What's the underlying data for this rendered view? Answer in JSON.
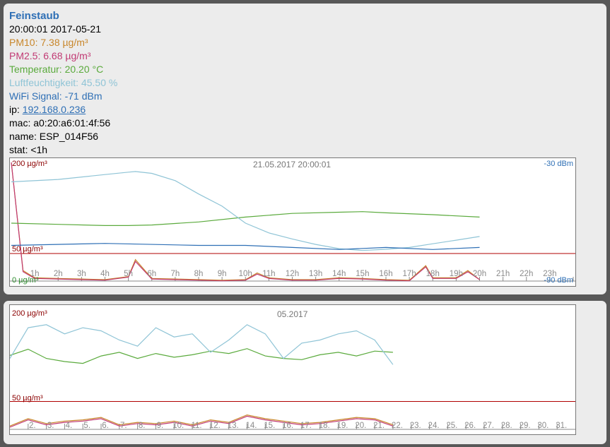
{
  "header": {
    "title": "Feinstaub",
    "datetime": "20:00:01 2017-05-21",
    "pm10": "PM10: 7.38 µg/m³",
    "pm25": "PM2.5: 6.68 µg/m³",
    "temperature": "Temperatur: 20.20 °C",
    "humidity": "Luftfeuchtigkeit: 45.50 %",
    "wifi": "WiFi Signal: -71 dBm",
    "ip_label": "ip: ",
    "ip": "192.168.0.236",
    "mac": "mac: a0:20:a6:01:4f:56",
    "name": "name: ESP_014F56",
    "stat": "stat: <1h"
  },
  "colors": {
    "pm10": "#c8862a",
    "pm25": "#c13a74",
    "temperature": "#5aaa3c",
    "humidity": "#8fc4d6",
    "wifi": "#2e6fb5",
    "limit": "#b00000"
  },
  "chart_day": {
    "top_left": "200 µg/m³",
    "center": "21.05.2017 20:00:01",
    "top_right": "-30 dBm",
    "limit_label": "50 µg/m³",
    "bottom_left": "0 µg/m³",
    "bottom_right": "-90 dBm",
    "x_ticks": [
      "1h",
      "2h",
      "3h",
      "4h",
      "5h",
      "6h",
      "7h",
      "8h",
      "9h",
      "10h",
      "11h",
      "12h",
      "13h",
      "14h",
      "15h",
      "16h",
      "17h",
      "18h",
      "19h",
      "20h",
      "21h",
      "22h",
      "23h"
    ]
  },
  "chart_month": {
    "top_left": "200 µg/m³",
    "center": "05.2017",
    "limit_label": "50 µg/m³",
    "x_ticks": [
      "2.",
      "3.",
      "4.",
      "5.",
      "6.",
      "7.",
      "8.",
      "9.",
      "10.",
      "11.",
      "12.",
      "13.",
      "14.",
      "15.",
      "16.",
      "17.",
      "18.",
      "19.",
      "20.",
      "21.",
      "22.",
      "23.",
      "24.",
      "25.",
      "26.",
      "27.",
      "28.",
      "29.",
      "30.",
      "31."
    ]
  },
  "chart_data": [
    {
      "type": "line",
      "title": "21.05.2017 20:00:01",
      "x_unit": "h",
      "xlim": [
        0,
        24
      ],
      "ylim": [
        0,
        200
      ],
      "ylim_right": [
        -90,
        -30
      ],
      "reference_lines": [
        {
          "label": "50 µg/m³",
          "y": 50
        }
      ],
      "series": [
        {
          "name": "PM10",
          "axis": "left",
          "x": [
            0,
            0.5,
            1,
            2,
            3,
            4,
            5,
            5.3,
            6,
            7,
            8,
            9,
            10,
            10.5,
            11,
            12,
            13,
            14,
            15,
            16,
            17,
            17.7,
            18,
            19,
            19.5,
            20
          ],
          "values": [
            200,
            22,
            10,
            9,
            8,
            7,
            12,
            40,
            9,
            8,
            7,
            6,
            7,
            18,
            10,
            7,
            7,
            10,
            9,
            7,
            6,
            30,
            10,
            10,
            22,
            7
          ]
        },
        {
          "name": "PM2.5",
          "axis": "left",
          "x": [
            0,
            0.5,
            1,
            2,
            3,
            4,
            5,
            5.3,
            6,
            7,
            8,
            9,
            10,
            10.5,
            11,
            12,
            13,
            14,
            15,
            16,
            17,
            17.7,
            18,
            19,
            19.5,
            20
          ],
          "values": [
            200,
            20,
            9,
            8,
            7,
            6,
            11,
            37,
            8,
            7,
            6,
            5,
            6,
            16,
            9,
            6,
            6,
            9,
            8,
            6,
            5,
            28,
            9,
            9,
            20,
            7
          ]
        },
        {
          "name": "Temperatur",
          "axis": "left",
          "x": [
            0,
            2,
            4,
            5,
            6,
            8,
            10,
            12,
            14,
            15,
            16,
            18,
            20
          ],
          "values": [
            100,
            98,
            96,
            96,
            97,
            102,
            110,
            116,
            118,
            119,
            117,
            114,
            110
          ]
        },
        {
          "name": "Luftfeuchtigkeit",
          "axis": "left",
          "x": [
            0,
            2,
            4,
            5,
            5.3,
            6,
            7,
            8,
            9,
            10,
            11,
            12,
            13,
            14,
            15,
            16,
            17,
            18,
            19,
            20
          ],
          "values": [
            168,
            172,
            180,
            184,
            185,
            182,
            170,
            148,
            128,
            100,
            84,
            74,
            65,
            58,
            55,
            57,
            60,
            66,
            72,
            78
          ]
        },
        {
          "name": "WiFi Signal",
          "axis": "right",
          "x": [
            0,
            4,
            8,
            10,
            12,
            14,
            16,
            18,
            20
          ],
          "values": [
            -71,
            -70,
            -71,
            -71,
            -72,
            -73,
            -72,
            -73,
            -72
          ]
        }
      ]
    },
    {
      "type": "line",
      "title": "05.2017",
      "x_unit": "day",
      "xlim": [
        1,
        32
      ],
      "ylim": [
        0,
        200
      ],
      "reference_lines": [
        {
          "label": "50 µg/m³",
          "y": 50
        }
      ],
      "series": [
        {
          "name": "PM10",
          "x": [
            1,
            2,
            3,
            4,
            5,
            6,
            7,
            8,
            9,
            10,
            11,
            12,
            13,
            14,
            15,
            16,
            17,
            18,
            19,
            20,
            21,
            22
          ],
          "values": [
            10,
            22,
            14,
            18,
            20,
            24,
            12,
            16,
            14,
            18,
            12,
            20,
            16,
            28,
            22,
            18,
            14,
            16,
            20,
            24,
            22,
            12
          ]
        },
        {
          "name": "PM2.5",
          "x": [
            1,
            2,
            3,
            4,
            5,
            6,
            7,
            8,
            9,
            10,
            11,
            12,
            13,
            14,
            15,
            16,
            17,
            18,
            19,
            20,
            21,
            22
          ],
          "values": [
            8,
            20,
            12,
            16,
            18,
            22,
            10,
            14,
            12,
            16,
            10,
            18,
            14,
            26,
            20,
            16,
            12,
            14,
            18,
            22,
            20,
            10
          ]
        },
        {
          "name": "Temperatur",
          "x": [
            1,
            2,
            3,
            4,
            5,
            6,
            7,
            8,
            9,
            10,
            11,
            12,
            13,
            14,
            15,
            16,
            17,
            18,
            19,
            20,
            21,
            22
          ],
          "values": [
            125,
            135,
            120,
            115,
            112,
            124,
            130,
            120,
            128,
            122,
            126,
            132,
            128,
            136,
            124,
            120,
            118,
            126,
            130,
            124,
            132,
            130
          ]
        },
        {
          "name": "Luftfeuchtigkeit",
          "x": [
            1,
            2,
            3,
            4,
            5,
            6,
            7,
            8,
            9,
            10,
            11,
            12,
            13,
            14,
            15,
            16,
            17,
            18,
            19,
            20,
            21,
            22
          ],
          "values": [
            120,
            170,
            175,
            160,
            170,
            165,
            150,
            140,
            170,
            155,
            160,
            130,
            150,
            175,
            160,
            120,
            145,
            150,
            160,
            165,
            150,
            110
          ]
        }
      ]
    }
  ]
}
